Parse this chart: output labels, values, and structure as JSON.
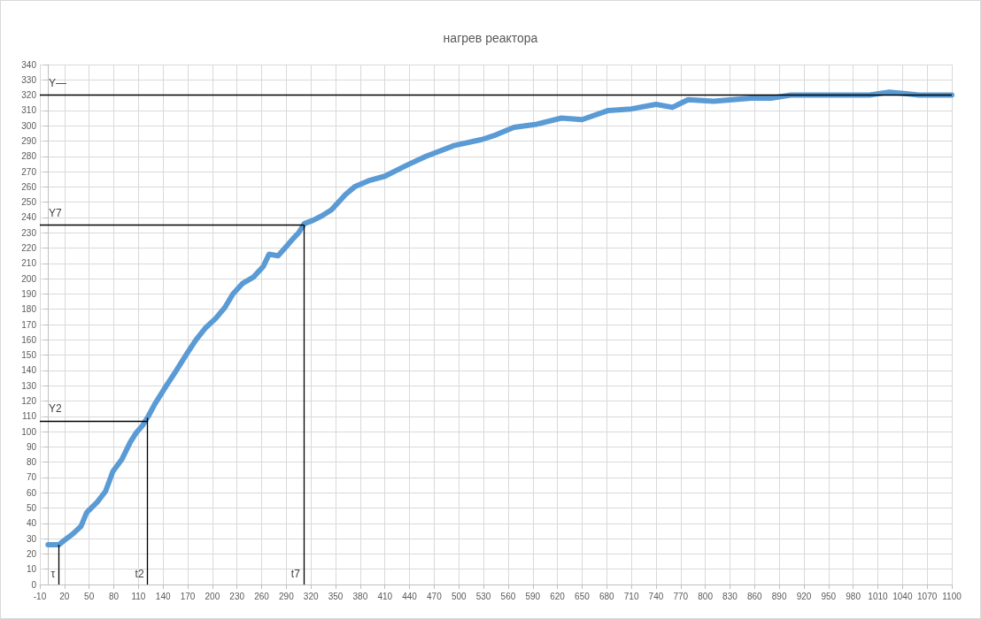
{
  "chart_data": {
    "type": "line",
    "title": "нагрев реактора",
    "x": [
      0,
      13,
      20,
      30,
      40,
      47,
      60,
      70,
      79,
      90,
      100,
      107,
      115,
      122,
      130,
      144,
      155,
      169,
      180,
      192,
      204,
      215,
      225,
      237,
      250,
      262,
      269,
      280,
      290,
      298,
      305,
      312,
      322,
      333,
      345,
      362,
      373,
      390,
      410,
      436,
      460,
      494,
      528,
      545,
      567,
      595,
      625,
      650,
      682,
      710,
      740,
      760,
      779,
      810,
      856,
      880,
      904,
      950,
      1000,
      1024,
      1060,
      1100
    ],
    "series": [
      {
        "color": "#5b9bd5",
        "values": [
          26,
          26,
          29,
          33,
          38,
          47,
          54,
          61,
          74,
          82,
          93,
          99,
          104,
          110,
          118,
          130,
          139,
          151,
          160,
          168,
          174,
          181,
          190,
          197,
          201,
          208,
          216,
          215,
          221,
          226,
          230,
          236,
          238,
          241,
          245,
          255,
          260,
          264,
          267,
          274,
          280,
          287,
          291,
          294,
          299,
          301,
          305,
          304,
          310,
          311,
          314,
          312,
          317,
          316,
          318,
          318,
          320,
          320,
          320,
          322,
          320,
          320
        ]
      }
    ],
    "xlim": [
      -10,
      1100
    ],
    "xticks": [
      -10,
      20,
      50,
      80,
      110,
      140,
      170,
      200,
      230,
      260,
      290,
      320,
      350,
      380,
      410,
      440,
      470,
      500,
      530,
      560,
      590,
      620,
      650,
      680,
      710,
      740,
      770,
      800,
      830,
      860,
      890,
      920,
      950,
      980,
      1010,
      1040,
      1070,
      1100
    ],
    "ylim": [
      0,
      340
    ],
    "yticks": [
      0,
      10,
      20,
      30,
      40,
      50,
      60,
      70,
      80,
      90,
      100,
      110,
      120,
      130,
      140,
      150,
      160,
      170,
      180,
      190,
      200,
      210,
      220,
      230,
      240,
      250,
      260,
      270,
      280,
      290,
      300,
      310,
      320,
      330,
      340
    ],
    "ref_lines": [
      {
        "axis": "y",
        "value": 320,
        "label": "Y—",
        "color": "#000000"
      },
      {
        "axis": "y",
        "value": 235,
        "label": "Y7",
        "color": "#000000"
      },
      {
        "axis": "y",
        "value": 107,
        "label": "Y2",
        "color": "#000000"
      },
      {
        "axis": "x",
        "value": 13,
        "label": "τ",
        "color": "#000000"
      },
      {
        "axis": "x",
        "value": 121,
        "label": "t2",
        "color": "#000000"
      },
      {
        "axis": "x",
        "value": 311,
        "label": "t7",
        "color": "#000000"
      }
    ],
    "grid": true,
    "line_style": "solid"
  }
}
